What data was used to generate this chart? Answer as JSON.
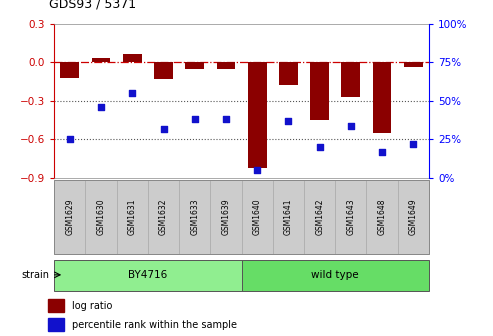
{
  "title": "GDS93 / 5371",
  "samples": [
    "GSM1629",
    "GSM1630",
    "GSM1631",
    "GSM1632",
    "GSM1633",
    "GSM1639",
    "GSM1640",
    "GSM1641",
    "GSM1642",
    "GSM1643",
    "GSM1648",
    "GSM1649"
  ],
  "log_ratio": [
    -0.12,
    0.03,
    0.06,
    -0.13,
    -0.05,
    -0.05,
    -0.82,
    -0.18,
    -0.45,
    -0.27,
    -0.55,
    -0.04
  ],
  "percentile_rank": [
    25,
    46,
    55,
    32,
    38,
    38,
    5,
    37,
    20,
    34,
    17,
    22
  ],
  "bar_color": "#8B0000",
  "scatter_color": "#1111CC",
  "ylim_left": [
    -0.9,
    0.3
  ],
  "ylim_right": [
    0,
    100
  ],
  "yticks_left": [
    -0.9,
    -0.6,
    -0.3,
    0.0,
    0.3
  ],
  "yticks_right": [
    0,
    25,
    50,
    75,
    100
  ],
  "hline_color": "#CC0000",
  "dotted_line_color": "#555555",
  "group1_color": "#90EE90",
  "group2_color": "#66DD66",
  "tick_label_bg": "#cccccc",
  "tick_label_edge": "#aaaaaa"
}
